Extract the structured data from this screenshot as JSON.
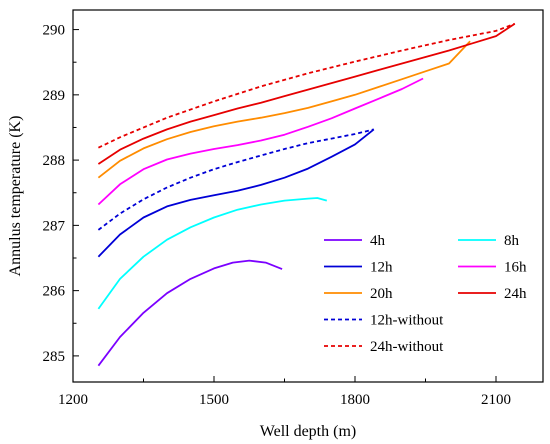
{
  "chart_data": {
    "type": "line",
    "title": "",
    "xlabel": "Well depth (m)",
    "ylabel": "Annulus temperature (K)",
    "xlim": [
      1200,
      2200
    ],
    "ylim": [
      284.6,
      290.3
    ],
    "xticks": [
      1200,
      1500,
      1800,
      2100
    ],
    "yticks": [
      285,
      286,
      287,
      288,
      289,
      290
    ],
    "grid": false,
    "legend_position": "bottom-right inside plot, two columns",
    "series": [
      {
        "name": "4h",
        "color": "#7b00ff",
        "dash": false,
        "points": [
          [
            1254,
            284.85
          ],
          [
            1300,
            285.29
          ],
          [
            1350,
            285.66
          ],
          [
            1400,
            285.96
          ],
          [
            1450,
            286.18
          ],
          [
            1500,
            286.34
          ],
          [
            1540,
            286.43
          ],
          [
            1575,
            286.46
          ],
          [
            1610,
            286.43
          ],
          [
            1645,
            286.33
          ]
        ]
      },
      {
        "name": "8h",
        "color": "#00ffff",
        "dash": false,
        "points": [
          [
            1254,
            285.72
          ],
          [
            1300,
            286.18
          ],
          [
            1350,
            286.52
          ],
          [
            1400,
            286.78
          ],
          [
            1450,
            286.97
          ],
          [
            1500,
            287.12
          ],
          [
            1550,
            287.24
          ],
          [
            1600,
            287.32
          ],
          [
            1650,
            287.38
          ],
          [
            1700,
            287.41
          ],
          [
            1720,
            287.42
          ],
          [
            1740,
            287.38
          ]
        ]
      },
      {
        "name": "12h",
        "color": "#0000d6",
        "dash": false,
        "points": [
          [
            1254,
            286.52
          ],
          [
            1300,
            286.86
          ],
          [
            1350,
            287.12
          ],
          [
            1400,
            287.29
          ],
          [
            1450,
            287.39
          ],
          [
            1500,
            287.46
          ],
          [
            1550,
            287.53
          ],
          [
            1600,
            287.62
          ],
          [
            1650,
            287.73
          ],
          [
            1700,
            287.87
          ],
          [
            1750,
            288.05
          ],
          [
            1800,
            288.24
          ],
          [
            1840,
            288.47
          ]
        ]
      },
      {
        "name": "16h",
        "color": "#ff00ff",
        "dash": false,
        "points": [
          [
            1254,
            287.32
          ],
          [
            1300,
            287.63
          ],
          [
            1350,
            287.86
          ],
          [
            1400,
            288.01
          ],
          [
            1450,
            288.1
          ],
          [
            1500,
            288.17
          ],
          [
            1550,
            288.23
          ],
          [
            1600,
            288.3
          ],
          [
            1650,
            288.39
          ],
          [
            1700,
            288.51
          ],
          [
            1750,
            288.64
          ],
          [
            1800,
            288.79
          ],
          [
            1850,
            288.94
          ],
          [
            1900,
            289.09
          ],
          [
            1945,
            289.25
          ]
        ]
      },
      {
        "name": "20h",
        "color": "#ff8c00",
        "dash": false,
        "points": [
          [
            1254,
            287.73
          ],
          [
            1300,
            287.99
          ],
          [
            1350,
            288.18
          ],
          [
            1400,
            288.32
          ],
          [
            1450,
            288.43
          ],
          [
            1500,
            288.52
          ],
          [
            1550,
            288.59
          ],
          [
            1600,
            288.65
          ],
          [
            1650,
            288.72
          ],
          [
            1700,
            288.8
          ],
          [
            1750,
            288.9
          ],
          [
            1800,
            289.0
          ],
          [
            1850,
            289.12
          ],
          [
            1900,
            289.24
          ],
          [
            1950,
            289.36
          ],
          [
            2000,
            289.48
          ],
          [
            2045,
            289.82
          ]
        ]
      },
      {
        "name": "24h",
        "color": "#e60000",
        "dash": false,
        "points": [
          [
            1254,
            287.94
          ],
          [
            1300,
            288.16
          ],
          [
            1350,
            288.33
          ],
          [
            1400,
            288.47
          ],
          [
            1450,
            288.59
          ],
          [
            1500,
            288.69
          ],
          [
            1550,
            288.79
          ],
          [
            1600,
            288.88
          ],
          [
            1650,
            288.98
          ],
          [
            1700,
            289.08
          ],
          [
            1750,
            289.18
          ],
          [
            1800,
            289.28
          ],
          [
            1850,
            289.38
          ],
          [
            1900,
            289.48
          ],
          [
            1950,
            289.58
          ],
          [
            2000,
            289.68
          ],
          [
            2050,
            289.79
          ],
          [
            2100,
            289.9
          ],
          [
            2140,
            290.09
          ]
        ]
      },
      {
        "name": "12h-without",
        "color": "#0000d6",
        "dash": true,
        "points": [
          [
            1254,
            286.93
          ],
          [
            1300,
            287.18
          ],
          [
            1350,
            287.4
          ],
          [
            1400,
            287.58
          ],
          [
            1450,
            287.73
          ],
          [
            1500,
            287.86
          ],
          [
            1550,
            287.97
          ],
          [
            1600,
            288.07
          ],
          [
            1650,
            288.17
          ],
          [
            1700,
            288.26
          ],
          [
            1750,
            288.33
          ],
          [
            1800,
            288.4
          ],
          [
            1840,
            288.47
          ]
        ]
      },
      {
        "name": "24h-without",
        "color": "#e60000",
        "dash": true,
        "points": [
          [
            1254,
            288.19
          ],
          [
            1300,
            288.35
          ],
          [
            1400,
            288.65
          ],
          [
            1500,
            288.9
          ],
          [
            1600,
            289.13
          ],
          [
            1700,
            289.33
          ],
          [
            1800,
            289.51
          ],
          [
            1900,
            289.68
          ],
          [
            2000,
            289.84
          ],
          [
            2100,
            289.98
          ],
          [
            2140,
            290.09
          ]
        ]
      }
    ]
  }
}
